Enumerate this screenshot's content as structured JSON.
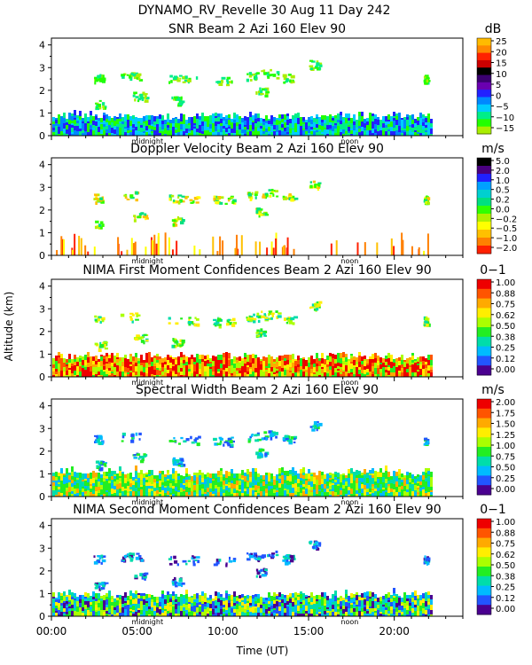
{
  "figure": {
    "title_line1": "DYNAMO_RV_Revelle  30 Aug 11 Day 242",
    "ylabel": "Altitude (km)",
    "xlabel": "Time (UT)",
    "x_ticks": [
      "00:00",
      "05:00",
      "10:00",
      "15:00",
      "20:00"
    ],
    "x_tick_values": [
      0,
      5,
      10,
      15,
      20
    ],
    "marker_midnight": "midnight",
    "marker_noon": "noon",
    "marker_midnight_hour": 5.6,
    "marker_noon_hour": 17.4
  },
  "chart_data": [
    {
      "type": "heatmap",
      "title": "SNR Beam 2 Azi 160 Elev 90",
      "unit": "dB",
      "xlabel": "Time (UT)",
      "ylabel": "Altitude (km)",
      "xlim": [
        0,
        24
      ],
      "ylim": [
        0,
        4.3
      ],
      "y_ticks": [
        "0",
        "1",
        "2",
        "3",
        "4"
      ],
      "colorbar_labels": [
        "25",
        "20",
        "15",
        "10",
        "5",
        "0",
        "−5",
        "−10",
        "−15"
      ],
      "colorbar_colors": [
        "#ffbb00",
        "#ff8800",
        "#ff2200",
        "#cc0000",
        "#000000",
        "#3a0070",
        "#6a00b0",
        "#2222ff",
        "#0088ff",
        "#00ccff",
        "#00ee88",
        "#22ff00",
        "#aaee00"
      ]
    },
    {
      "type": "heatmap",
      "title": "Doppler Velocity Beam 2 Azi 160 Elev 90",
      "unit": "m/s",
      "xlabel": "Time (UT)",
      "ylabel": "Altitude (km)",
      "xlim": [
        0,
        24
      ],
      "ylim": [
        0,
        4.3
      ],
      "y_ticks": [
        "0",
        "1",
        "2",
        "3",
        "4"
      ],
      "colorbar_labels": [
        "5.0",
        "2.0",
        "1.0",
        "0.5",
        "0.2",
        "0.0",
        "−0.2",
        "−0.5",
        "−1.0",
        "−2.0"
      ],
      "colorbar_colors": [
        "#000000",
        "#4a0080",
        "#2020ff",
        "#00a0ff",
        "#00d0d0",
        "#00e080",
        "#30ff00",
        "#b0f000",
        "#ffff00",
        "#ffc000",
        "#ff8000",
        "#ff2000"
      ]
    },
    {
      "type": "heatmap",
      "title": "NIMA First Moment Confidences Beam 2 Azi 160 Elev 90",
      "unit": "0−1",
      "xlabel": "Time (UT)",
      "ylabel": "Altitude (km)",
      "xlim": [
        0,
        24
      ],
      "ylim": [
        0,
        4.3
      ],
      "y_ticks": [
        "0",
        "1",
        "2",
        "3",
        "4"
      ],
      "colorbar_labels": [
        "1.00",
        "0.88",
        "0.75",
        "0.62",
        "0.50",
        "0.38",
        "0.25",
        "0.12",
        "0.00"
      ],
      "colorbar_colors": [
        "#ee0000",
        "#ff5500",
        "#ffaa00",
        "#ffee00",
        "#aaff00",
        "#22ee22",
        "#00ddaa",
        "#00bbff",
        "#2255ff",
        "#4a0090"
      ]
    },
    {
      "type": "heatmap",
      "title": "Spectral Width Beam 2 Azi 160 Elev 90",
      "unit": "m/s",
      "xlabel": "Time (UT)",
      "ylabel": "Altitude (km)",
      "xlim": [
        0,
        24
      ],
      "ylim": [
        0,
        4.3
      ],
      "y_ticks": [
        "0",
        "1",
        "2",
        "3",
        "4"
      ],
      "colorbar_labels": [
        "2.00",
        "1.75",
        "1.50",
        "1.25",
        "1.00",
        "0.75",
        "0.50",
        "0.25",
        "0.00"
      ],
      "colorbar_colors": [
        "#ee0000",
        "#ff5500",
        "#ffaa00",
        "#ffee00",
        "#aaff00",
        "#22ee22",
        "#00ddaa",
        "#00bbff",
        "#2255ff",
        "#4a0090"
      ]
    },
    {
      "type": "heatmap",
      "title": "NIMA Second Moment Confidences Beam 2 Azi 160 Elev 90",
      "unit": "0−1",
      "xlabel": "Time (UT)",
      "ylabel": "Altitude (km)",
      "xlim": [
        0,
        24
      ],
      "ylim": [
        0,
        4.3
      ],
      "y_ticks": [
        "0",
        "1",
        "2",
        "3",
        "4"
      ],
      "colorbar_labels": [
        "1.00",
        "0.88",
        "0.75",
        "0.62",
        "0.50",
        "0.38",
        "0.25",
        "0.12",
        "0.00"
      ],
      "colorbar_colors": [
        "#ee0000",
        "#ff5500",
        "#ffaa00",
        "#ffee00",
        "#aaff00",
        "#22ee22",
        "#00ddaa",
        "#00bbff",
        "#2255ff",
        "#4a0090"
      ]
    }
  ]
}
